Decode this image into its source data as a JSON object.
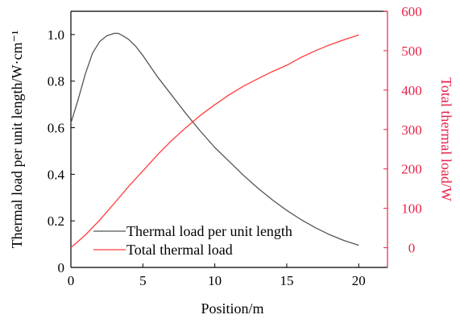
{
  "colors": {
    "series_black": "#555555",
    "series_red": "#ff3b3b",
    "right_axis": "#e8234a",
    "axis": "#000000"
  },
  "chart_data": {
    "type": "line",
    "xlabel": "Position/m",
    "ylabel_left": "Thermal load per unit length/W·cm⁻¹",
    "ylabel_right": "Total thermal load/W",
    "xlim": [
      0,
      22
    ],
    "ylim_left": [
      0,
      1.1
    ],
    "ylim_right": [
      -50,
      600
    ],
    "x_ticks": [
      0,
      5,
      10,
      15,
      20
    ],
    "y_left_ticks": [
      0,
      0.2,
      0.4,
      0.6,
      0.8,
      1.0
    ],
    "y_left_tick_labels": [
      "0",
      "0.2",
      "0.4",
      "0.6",
      "0.8",
      "1.0"
    ],
    "y_right_ticks": [
      0,
      100,
      200,
      300,
      400,
      500,
      600
    ],
    "grid": false,
    "legend_position": "bottom-center",
    "series": [
      {
        "name": "Thermal load per unit length",
        "axis": "left",
        "x": [
          0,
          0.5,
          1,
          1.5,
          2,
          2.5,
          3,
          3.3,
          3.6,
          4,
          4.5,
          5,
          6,
          7,
          8,
          9,
          10,
          11,
          12,
          13,
          14,
          15,
          16,
          17,
          18,
          19,
          20
        ],
        "y": [
          0.62,
          0.72,
          0.83,
          0.92,
          0.97,
          0.995,
          1.005,
          1.005,
          0.995,
          0.98,
          0.95,
          0.91,
          0.82,
          0.74,
          0.66,
          0.585,
          0.515,
          0.455,
          0.395,
          0.34,
          0.29,
          0.245,
          0.205,
          0.17,
          0.14,
          0.115,
          0.095
        ]
      },
      {
        "name": "Total thermal load",
        "axis": "right",
        "x": [
          0,
          1,
          2,
          3,
          4,
          5,
          6,
          7,
          8,
          9,
          10,
          11,
          12,
          13,
          14,
          15,
          16,
          17,
          18,
          19,
          20
        ],
        "y": [
          0,
          32,
          70,
          112,
          155,
          195,
          235,
          272,
          305,
          336,
          363,
          388,
          410,
          429,
          447,
          463,
          483,
          500,
          515,
          528,
          540
        ]
      }
    ]
  }
}
